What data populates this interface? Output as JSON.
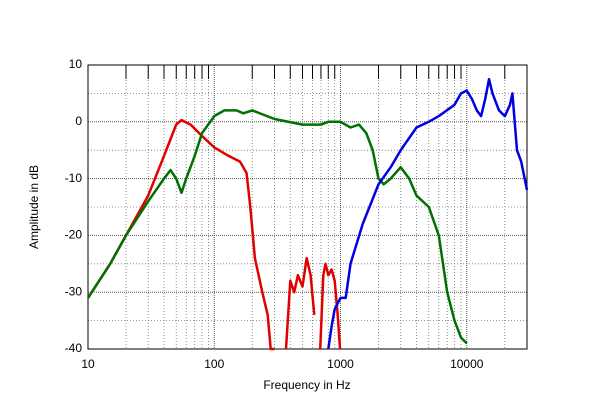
{
  "chart_data": {
    "type": "line",
    "xlabel": "Frequency in Hz",
    "ylabel": "Amplitude in dB",
    "xscale": "log",
    "xlim": [
      10,
      30000
    ],
    "ylim": [
      -40,
      10
    ],
    "xticks": [
      10,
      100,
      1000,
      10000
    ],
    "xminorticks": [
      20,
      30,
      40,
      50,
      60,
      70,
      80,
      90,
      200,
      300,
      400,
      500,
      600,
      700,
      800,
      900,
      2000,
      3000,
      4000,
      5000,
      6000,
      7000,
      8000,
      9000,
      20000
    ],
    "yticks": [
      10,
      0,
      -10,
      -20,
      -30,
      -40
    ],
    "yminorticks": [
      5,
      -5,
      -15,
      -25,
      -35
    ],
    "grid": true,
    "series": [
      {
        "color": "#e00000",
        "x": [
          10,
          15,
          20,
          30,
          40,
          50,
          55,
          65,
          80,
          100,
          130,
          160,
          180,
          193,
          210,
          240,
          265,
          280,
          300,
          null,
          370,
          400,
          430,
          460,
          500,
          540,
          580,
          620,
          null,
          690,
          730,
          760,
          800,
          850,
          900,
          950,
          990
        ],
        "values": [
          -31,
          -25,
          -20,
          -13,
          -6,
          -0.5,
          0.3,
          -0.5,
          -2.5,
          -4.5,
          -6,
          -7,
          -9,
          -15,
          -24,
          -30,
          -34,
          -40,
          -40,
          null,
          -40,
          -28,
          -30,
          -27,
          -29,
          -24,
          -27,
          -34,
          null,
          -40,
          -27,
          -25,
          -27,
          -26,
          -28,
          -34,
          -40
        ]
      },
      {
        "color": "#007000",
        "x": [
          10,
          15,
          20,
          30,
          40,
          45,
          50,
          55,
          60,
          70,
          80,
          100,
          120,
          150,
          170,
          200,
          300,
          500,
          700,
          800,
          1000,
          1200,
          1400,
          1600,
          1800,
          2000,
          2200,
          2500,
          3000,
          3500,
          4000,
          5000,
          6000,
          7000,
          8000,
          9000,
          10000
        ],
        "values": [
          -31,
          -25,
          -20,
          -14,
          -10,
          -8.5,
          -10,
          -12.5,
          -10,
          -6,
          -2,
          1,
          2,
          2,
          1.5,
          2,
          0.5,
          -0.5,
          -0.5,
          0,
          0,
          -1,
          -0.5,
          -2,
          -5,
          -10,
          -11,
          -10,
          -8,
          -10,
          -13,
          -15,
          -20,
          -30,
          -35,
          -38,
          -39
        ]
      },
      {
        "color": "#0000e0",
        "x": [
          800,
          850,
          900,
          1000,
          1100,
          1200,
          1500,
          2000,
          2500,
          3000,
          4000,
          5000,
          6000,
          8000,
          9000,
          10000,
          11000,
          12000,
          13000,
          14000,
          15000,
          16000,
          18000,
          20000,
          22000,
          23000,
          25000,
          27000,
          30000
        ],
        "values": [
          -40,
          -36,
          -33,
          -31,
          -31,
          -25,
          -18,
          -11,
          -8,
          -5,
          -1,
          0,
          1,
          3,
          5,
          5.5,
          4,
          2,
          1,
          4,
          7.5,
          5,
          2,
          1,
          3,
          5,
          -5,
          -7,
          -12
        ]
      }
    ]
  }
}
